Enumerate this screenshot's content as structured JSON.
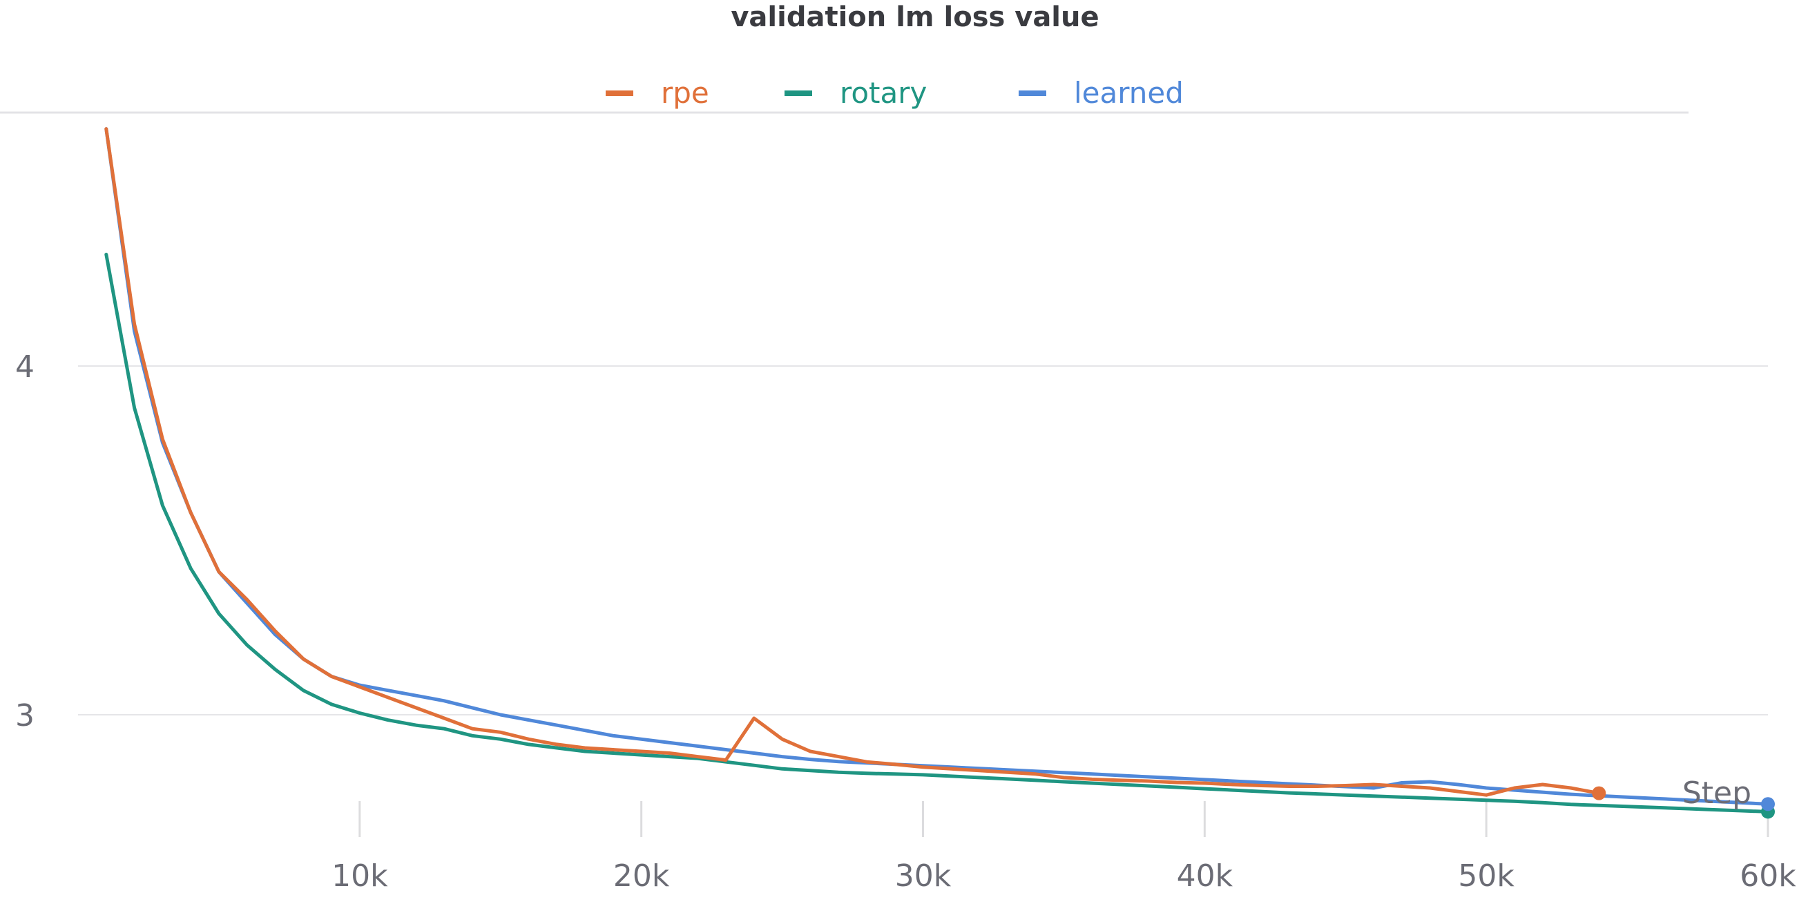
{
  "chart_data": {
    "type": "line",
    "title": "validation lm loss value",
    "xlabel": "Step",
    "ylabel": "",
    "xlim": [
      0,
      60000
    ],
    "ylim": [
      2.67,
      4.7
    ],
    "grid": true,
    "legend_position": "top-center",
    "x_ticks": [
      {
        "value": 10000,
        "label": "10k"
      },
      {
        "value": 20000,
        "label": "20k"
      },
      {
        "value": 30000,
        "label": "30k"
      },
      {
        "value": 40000,
        "label": "40k"
      },
      {
        "value": 50000,
        "label": "50k"
      },
      {
        "value": 60000,
        "label": "60k"
      }
    ],
    "y_ticks": [
      {
        "value": 3,
        "label": "3"
      },
      {
        "value": 4,
        "label": "4"
      }
    ],
    "series": [
      {
        "name": "rpe",
        "color": "#e07039",
        "end_marker": true,
        "points": [
          [
            1000,
            4.68
          ],
          [
            2000,
            4.12
          ],
          [
            3000,
            3.79
          ],
          [
            4000,
            3.58
          ],
          [
            5000,
            3.41
          ],
          [
            6000,
            3.33
          ],
          [
            7000,
            3.24
          ],
          [
            8000,
            3.16
          ],
          [
            9000,
            3.11
          ],
          [
            10000,
            3.08
          ],
          [
            11000,
            3.05
          ],
          [
            12000,
            3.02
          ],
          [
            13000,
            2.99
          ],
          [
            14000,
            2.96
          ],
          [
            15000,
            2.95
          ],
          [
            16000,
            2.93
          ],
          [
            17000,
            2.915
          ],
          [
            18000,
            2.905
          ],
          [
            19000,
            2.9
          ],
          [
            20000,
            2.895
          ],
          [
            21000,
            2.89
          ],
          [
            22000,
            2.88
          ],
          [
            23000,
            2.87
          ],
          [
            24000,
            2.99
          ],
          [
            25000,
            2.93
          ],
          [
            26000,
            2.895
          ],
          [
            27000,
            2.88
          ],
          [
            28000,
            2.865
          ],
          [
            29000,
            2.858
          ],
          [
            30000,
            2.85
          ],
          [
            31000,
            2.845
          ],
          [
            32000,
            2.84
          ],
          [
            33000,
            2.835
          ],
          [
            34000,
            2.83
          ],
          [
            35000,
            2.82
          ],
          [
            36000,
            2.815
          ],
          [
            37000,
            2.812
          ],
          [
            38000,
            2.81
          ],
          [
            39000,
            2.806
          ],
          [
            40000,
            2.804
          ],
          [
            41000,
            2.8
          ],
          [
            42000,
            2.797
          ],
          [
            43000,
            2.795
          ],
          [
            44000,
            2.795
          ],
          [
            45000,
            2.797
          ],
          [
            46000,
            2.8
          ],
          [
            47000,
            2.795
          ],
          [
            48000,
            2.79
          ],
          [
            49000,
            2.78
          ],
          [
            50000,
            2.77
          ],
          [
            51000,
            2.79
          ],
          [
            52000,
            2.8
          ],
          [
            53000,
            2.79
          ],
          [
            54000,
            2.775
          ]
        ]
      },
      {
        "name": "rotary",
        "color": "#1f9582",
        "end_marker": true,
        "points": [
          [
            1000,
            4.32
          ],
          [
            2000,
            3.88
          ],
          [
            3000,
            3.6
          ],
          [
            4000,
            3.42
          ],
          [
            5000,
            3.29
          ],
          [
            6000,
            3.2
          ],
          [
            7000,
            3.13
          ],
          [
            8000,
            3.07
          ],
          [
            9000,
            3.03
          ],
          [
            10000,
            3.005
          ],
          [
            11000,
            2.985
          ],
          [
            12000,
            2.97
          ],
          [
            13000,
            2.96
          ],
          [
            14000,
            2.94
          ],
          [
            15000,
            2.93
          ],
          [
            16000,
            2.915
          ],
          [
            17000,
            2.905
          ],
          [
            18000,
            2.895
          ],
          [
            19000,
            2.89
          ],
          [
            20000,
            2.885
          ],
          [
            21000,
            2.88
          ],
          [
            22000,
            2.875
          ],
          [
            23000,
            2.865
          ],
          [
            24000,
            2.855
          ],
          [
            25000,
            2.845
          ],
          [
            26000,
            2.84
          ],
          [
            27000,
            2.835
          ],
          [
            28000,
            2.832
          ],
          [
            29000,
            2.83
          ],
          [
            30000,
            2.828
          ],
          [
            31000,
            2.824
          ],
          [
            32000,
            2.82
          ],
          [
            33000,
            2.816
          ],
          [
            34000,
            2.812
          ],
          [
            35000,
            2.808
          ],
          [
            36000,
            2.804
          ],
          [
            37000,
            2.8
          ],
          [
            38000,
            2.796
          ],
          [
            39000,
            2.792
          ],
          [
            40000,
            2.788
          ],
          [
            41000,
            2.784
          ],
          [
            42000,
            2.78
          ],
          [
            43000,
            2.776
          ],
          [
            44000,
            2.773
          ],
          [
            45000,
            2.77
          ],
          [
            46000,
            2.767
          ],
          [
            47000,
            2.764
          ],
          [
            48000,
            2.761
          ],
          [
            49000,
            2.758
          ],
          [
            50000,
            2.755
          ],
          [
            51000,
            2.752
          ],
          [
            52000,
            2.748
          ],
          [
            53000,
            2.743
          ],
          [
            54000,
            2.74
          ],
          [
            55000,
            2.737
          ],
          [
            56000,
            2.734
          ],
          [
            57000,
            2.731
          ],
          [
            58000,
            2.728
          ],
          [
            59000,
            2.725
          ],
          [
            60000,
            2.722
          ]
        ]
      },
      {
        "name": "learned",
        "color": "#5088d9",
        "end_marker": true,
        "points": [
          [
            1000,
            4.68
          ],
          [
            2000,
            4.1
          ],
          [
            3000,
            3.78
          ],
          [
            4000,
            3.58
          ],
          [
            5000,
            3.41
          ],
          [
            6000,
            3.32
          ],
          [
            7000,
            3.23
          ],
          [
            8000,
            3.16
          ],
          [
            9000,
            3.11
          ],
          [
            10000,
            3.085
          ],
          [
            11000,
            3.07
          ],
          [
            12000,
            3.055
          ],
          [
            13000,
            3.04
          ],
          [
            14000,
            3.02
          ],
          [
            15000,
            3.0
          ],
          [
            16000,
            2.985
          ],
          [
            17000,
            2.97
          ],
          [
            18000,
            2.955
          ],
          [
            19000,
            2.94
          ],
          [
            20000,
            2.93
          ],
          [
            21000,
            2.92
          ],
          [
            22000,
            2.91
          ],
          [
            23000,
            2.9
          ],
          [
            24000,
            2.89
          ],
          [
            25000,
            2.88
          ],
          [
            26000,
            2.872
          ],
          [
            27000,
            2.866
          ],
          [
            28000,
            2.862
          ],
          [
            29000,
            2.858
          ],
          [
            30000,
            2.854
          ],
          [
            31000,
            2.85
          ],
          [
            32000,
            2.846
          ],
          [
            33000,
            2.842
          ],
          [
            34000,
            2.838
          ],
          [
            35000,
            2.834
          ],
          [
            36000,
            2.83
          ],
          [
            37000,
            2.826
          ],
          [
            38000,
            2.822
          ],
          [
            39000,
            2.818
          ],
          [
            40000,
            2.814
          ],
          [
            41000,
            2.81
          ],
          [
            42000,
            2.806
          ],
          [
            43000,
            2.802
          ],
          [
            44000,
            2.798
          ],
          [
            45000,
            2.794
          ],
          [
            46000,
            2.79
          ],
          [
            47000,
            2.805
          ],
          [
            48000,
            2.808
          ],
          [
            49000,
            2.8
          ],
          [
            50000,
            2.79
          ],
          [
            51000,
            2.784
          ],
          [
            52000,
            2.778
          ],
          [
            53000,
            2.772
          ],
          [
            54000,
            2.768
          ],
          [
            55000,
            2.764
          ],
          [
            56000,
            2.76
          ],
          [
            57000,
            2.756
          ],
          [
            58000,
            2.752
          ],
          [
            59000,
            2.748
          ],
          [
            60000,
            2.744
          ]
        ]
      }
    ]
  }
}
